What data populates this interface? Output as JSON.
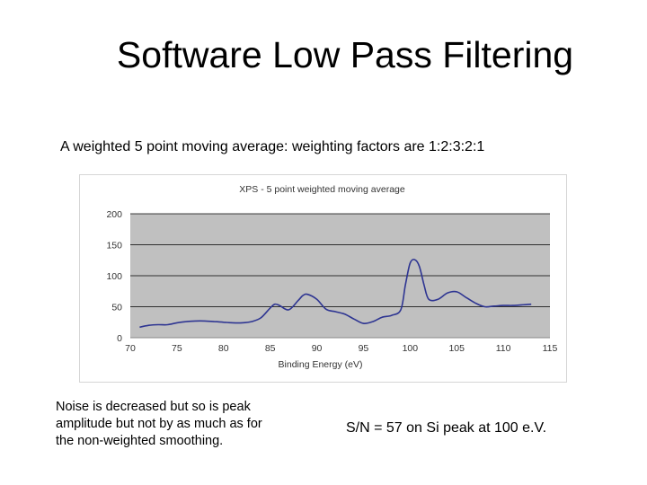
{
  "slide": {
    "title": "Software Low Pass Filtering",
    "subtitle": "A weighted 5 point moving average: weighting factors are 1:2:3:2:1",
    "note_left": "Noise is decreased but so is peak amplitude but not by as much as for the non-weighted smoothing.",
    "note_right": "S/N = 57 on Si peak at 100 e.V."
  },
  "colors": {
    "plot_background": "#c0c0c0",
    "line": "#2e3592",
    "gridline": "#000000",
    "axis_text": "#333333"
  },
  "chart_data": {
    "type": "line",
    "title": "XPS - 5 point weighted moving average",
    "xlabel": "Binding Energy (eV)",
    "ylabel": "",
    "xlim": [
      70,
      115
    ],
    "ylim": [
      0,
      200
    ],
    "xticks": [
      70,
      75,
      80,
      85,
      90,
      95,
      100,
      105,
      110,
      115
    ],
    "yticks": [
      0,
      50,
      100,
      150,
      200
    ],
    "grid": true,
    "legend": "none",
    "x": [
      71,
      72,
      73,
      74,
      75,
      76,
      77,
      78,
      79,
      80,
      81,
      82,
      83,
      84,
      85,
      85.5,
      86,
      87,
      88,
      88.5,
      89,
      90,
      91,
      92,
      93,
      94,
      95,
      96,
      97,
      98,
      99,
      99.5,
      100,
      100.5,
      101,
      101.5,
      102,
      103,
      104,
      105,
      106,
      107,
      108,
      109,
      110,
      111,
      112,
      113
    ],
    "y": [
      17,
      20,
      21,
      21,
      24,
      26,
      27,
      27,
      26,
      25,
      24,
      24,
      26,
      32,
      48,
      54,
      52,
      45,
      60,
      68,
      70,
      62,
      46,
      42,
      38,
      30,
      23,
      26,
      33,
      36,
      45,
      85,
      120,
      126,
      115,
      85,
      62,
      62,
      72,
      74,
      65,
      56,
      50,
      51,
      52,
      52,
      53,
      54
    ]
  }
}
